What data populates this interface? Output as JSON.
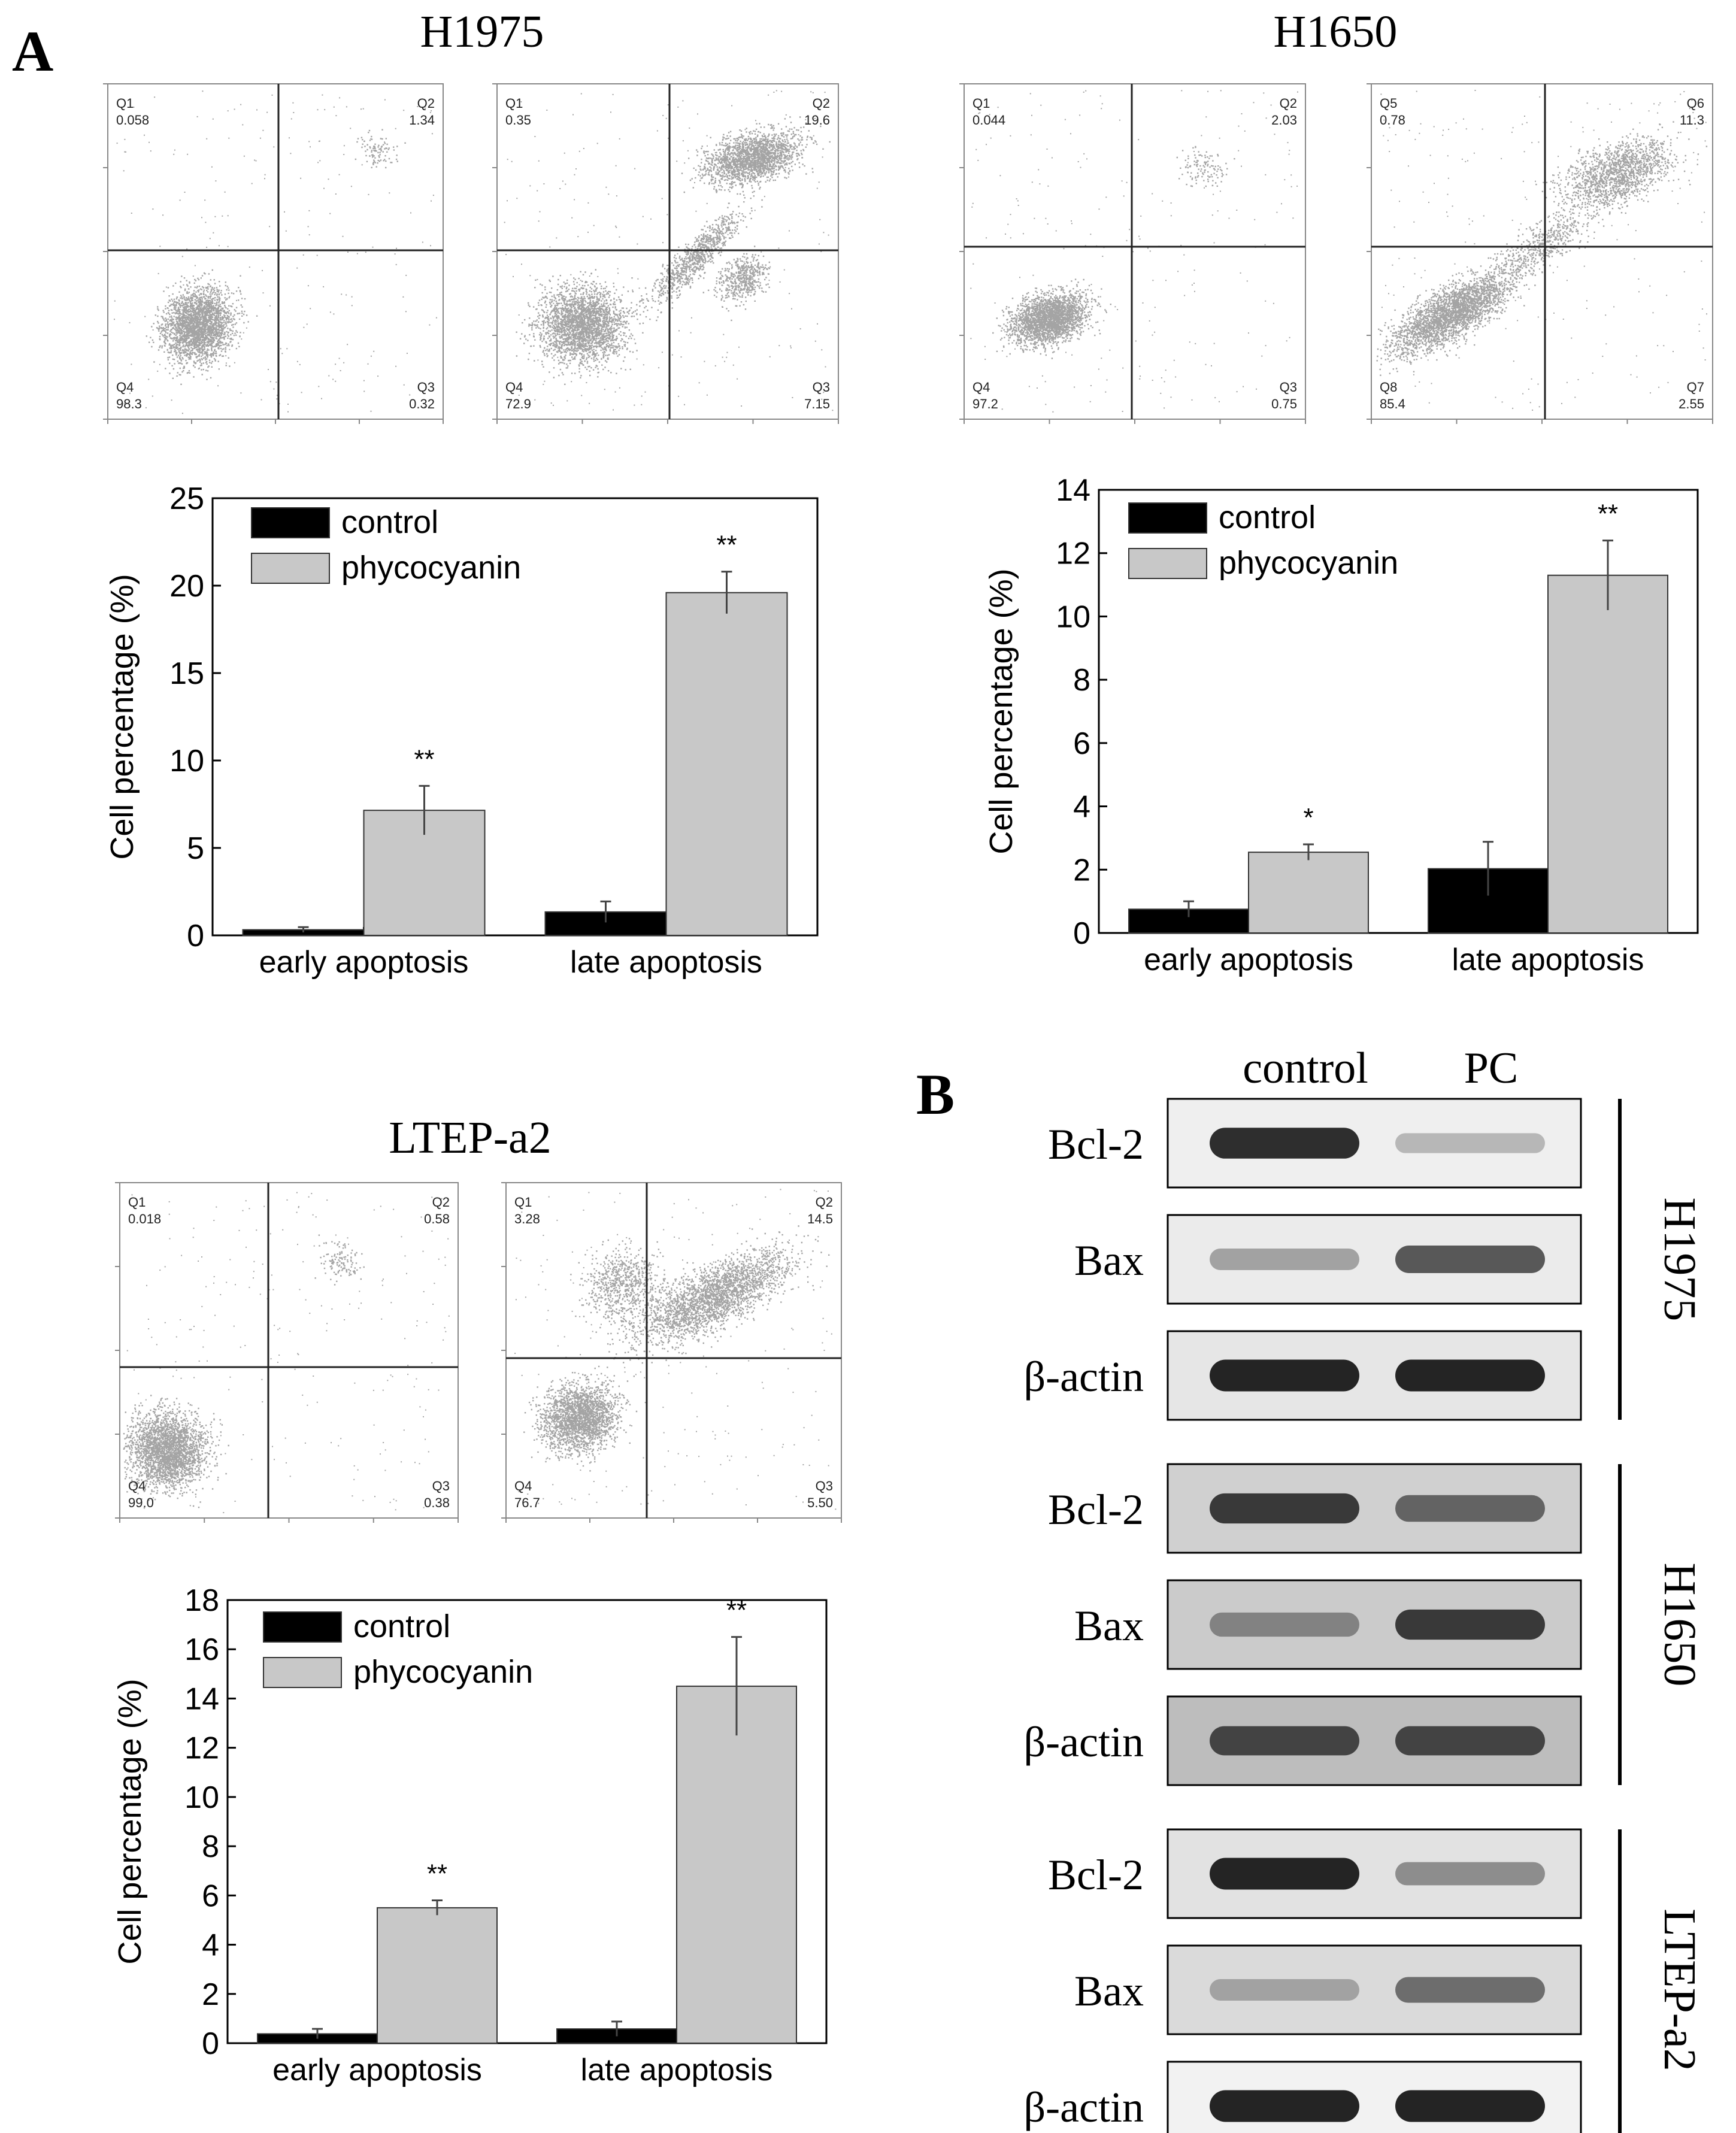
{
  "panel_labels": {
    "A": "A",
    "B": "B"
  },
  "flow_panels": [
    {
      "cell_line": "H1975",
      "plots": [
        {
          "quadrants": {
            "ul": {
              "label": "Q1",
              "value": "0.058"
            },
            "ur": {
              "label": "Q2",
              "value": "1.34"
            },
            "lr": {
              "label": "Q3",
              "value": "0.32"
            },
            "ll": {
              "label": "Q4",
              "value": "98.3"
            }
          }
        },
        {
          "quadrants": {
            "ul": {
              "label": "Q1",
              "value": "0.35"
            },
            "ur": {
              "label": "Q2",
              "value": "19.6"
            },
            "lr": {
              "label": "Q3",
              "value": "7.15"
            },
            "ll": {
              "label": "Q4",
              "value": "72.9"
            }
          }
        }
      ]
    },
    {
      "cell_line": "H1650",
      "plots": [
        {
          "quadrants": {
            "ul": {
              "label": "Q1",
              "value": "0.044"
            },
            "ur": {
              "label": "Q2",
              "value": "2.03"
            },
            "lr": {
              "label": "Q3",
              "value": "0.75"
            },
            "ll": {
              "label": "Q4",
              "value": "97.2"
            }
          }
        },
        {
          "quadrants": {
            "ul": {
              "label": "Q5",
              "value": "0.78"
            },
            "ur": {
              "label": "Q6",
              "value": "11.3"
            },
            "lr": {
              "label": "Q7",
              "value": "2.55"
            },
            "ll": {
              "label": "Q8",
              "value": "85.4"
            }
          }
        }
      ]
    },
    {
      "cell_line": "LTEP-a2",
      "plots": [
        {
          "quadrants": {
            "ul": {
              "label": "Q1",
              "value": "0.018"
            },
            "ur": {
              "label": "Q2",
              "value": "0.58"
            },
            "lr": {
              "label": "Q3",
              "value": "0.38"
            },
            "ll": {
              "label": "Q4",
              "value": "99.0"
            }
          }
        },
        {
          "quadrants": {
            "ul": {
              "label": "Q1",
              "value": "3.28"
            },
            "ur": {
              "label": "Q2",
              "value": "14.5"
            },
            "lr": {
              "label": "Q3",
              "value": "5.50"
            },
            "ll": {
              "label": "Q4",
              "value": "76.7"
            }
          }
        }
      ]
    }
  ],
  "chart_data": [
    {
      "type": "bar",
      "panel": "H1975",
      "categories": [
        "early apoptosis",
        "late apoptosis"
      ],
      "series": [
        {
          "name": "control",
          "color": "#000000",
          "values": [
            0.32,
            1.34
          ],
          "errors": [
            0.15,
            0.6
          ]
        },
        {
          "name": "phycocyanin",
          "color": "#c8c8c8",
          "values": [
            7.15,
            19.6
          ],
          "errors": [
            1.4,
            1.2
          ]
        }
      ],
      "annotations": [
        "",
        "",
        "**",
        "**"
      ],
      "ylabel": "Cell percentage (%)",
      "ylim": [
        0,
        25
      ],
      "yticks": [
        "0",
        "5",
        "10",
        "15",
        "20",
        "25"
      ],
      "legend": "top-left"
    },
    {
      "type": "bar",
      "panel": "H1650",
      "categories": [
        "early apoptosis",
        "late apoptosis"
      ],
      "series": [
        {
          "name": "control",
          "color": "#000000",
          "values": [
            0.75,
            2.03
          ],
          "errors": [
            0.25,
            0.85
          ]
        },
        {
          "name": "phycocyanin",
          "color": "#c8c8c8",
          "values": [
            2.55,
            11.3
          ],
          "errors": [
            0.25,
            1.1
          ]
        }
      ],
      "annotations": [
        "",
        "",
        "*",
        "**"
      ],
      "ylabel": "Cell percentage (%)",
      "ylim": [
        0,
        14
      ],
      "yticks": [
        "0",
        "2",
        "4",
        "6",
        "8",
        "10",
        "12",
        "14"
      ],
      "legend": "top-left"
    },
    {
      "type": "bar",
      "panel": "LTEP-a2",
      "categories": [
        "early apoptosis",
        "late apoptosis"
      ],
      "series": [
        {
          "name": "control",
          "color": "#000000",
          "values": [
            0.38,
            0.58
          ],
          "errors": [
            0.2,
            0.3
          ]
        },
        {
          "name": "phycocyanin",
          "color": "#c8c8c8",
          "values": [
            5.5,
            14.5
          ],
          "errors": [
            0.3,
            2.0
          ]
        }
      ],
      "annotations": [
        "",
        "",
        "**",
        "**"
      ],
      "ylabel": "Cell percentage (%)",
      "ylim": [
        0,
        18
      ],
      "yticks": [
        "0",
        "2",
        "4",
        "6",
        "8",
        "10",
        "12",
        "14",
        "16",
        "18"
      ],
      "legend": "top-left"
    }
  ],
  "western": {
    "lane_labels": [
      "control",
      "PC"
    ],
    "groups": [
      {
        "cell_line": "H1975",
        "rows": [
          {
            "label": "Bcl-2",
            "control": 0.9,
            "pc": 0.25
          },
          {
            "label": "Bax",
            "control": 0.35,
            "pc": 0.7
          },
          {
            "label": "β-actin",
            "control": 0.95,
            "pc": 0.95
          }
        ]
      },
      {
        "cell_line": "H1650",
        "rows": [
          {
            "label": "Bcl-2",
            "control": 0.85,
            "pc": 0.65
          },
          {
            "label": "Bax",
            "control": 0.5,
            "pc": 0.85
          },
          {
            "label": "β-actin",
            "control": 0.8,
            "pc": 0.8
          }
        ]
      },
      {
        "cell_line": "LTEP-a2",
        "rows": [
          {
            "label": "Bcl-2",
            "control": 0.95,
            "pc": 0.45
          },
          {
            "label": "Bax",
            "control": 0.35,
            "pc": 0.6
          },
          {
            "label": "β-actin",
            "control": 0.95,
            "pc": 0.95
          }
        ]
      }
    ]
  }
}
